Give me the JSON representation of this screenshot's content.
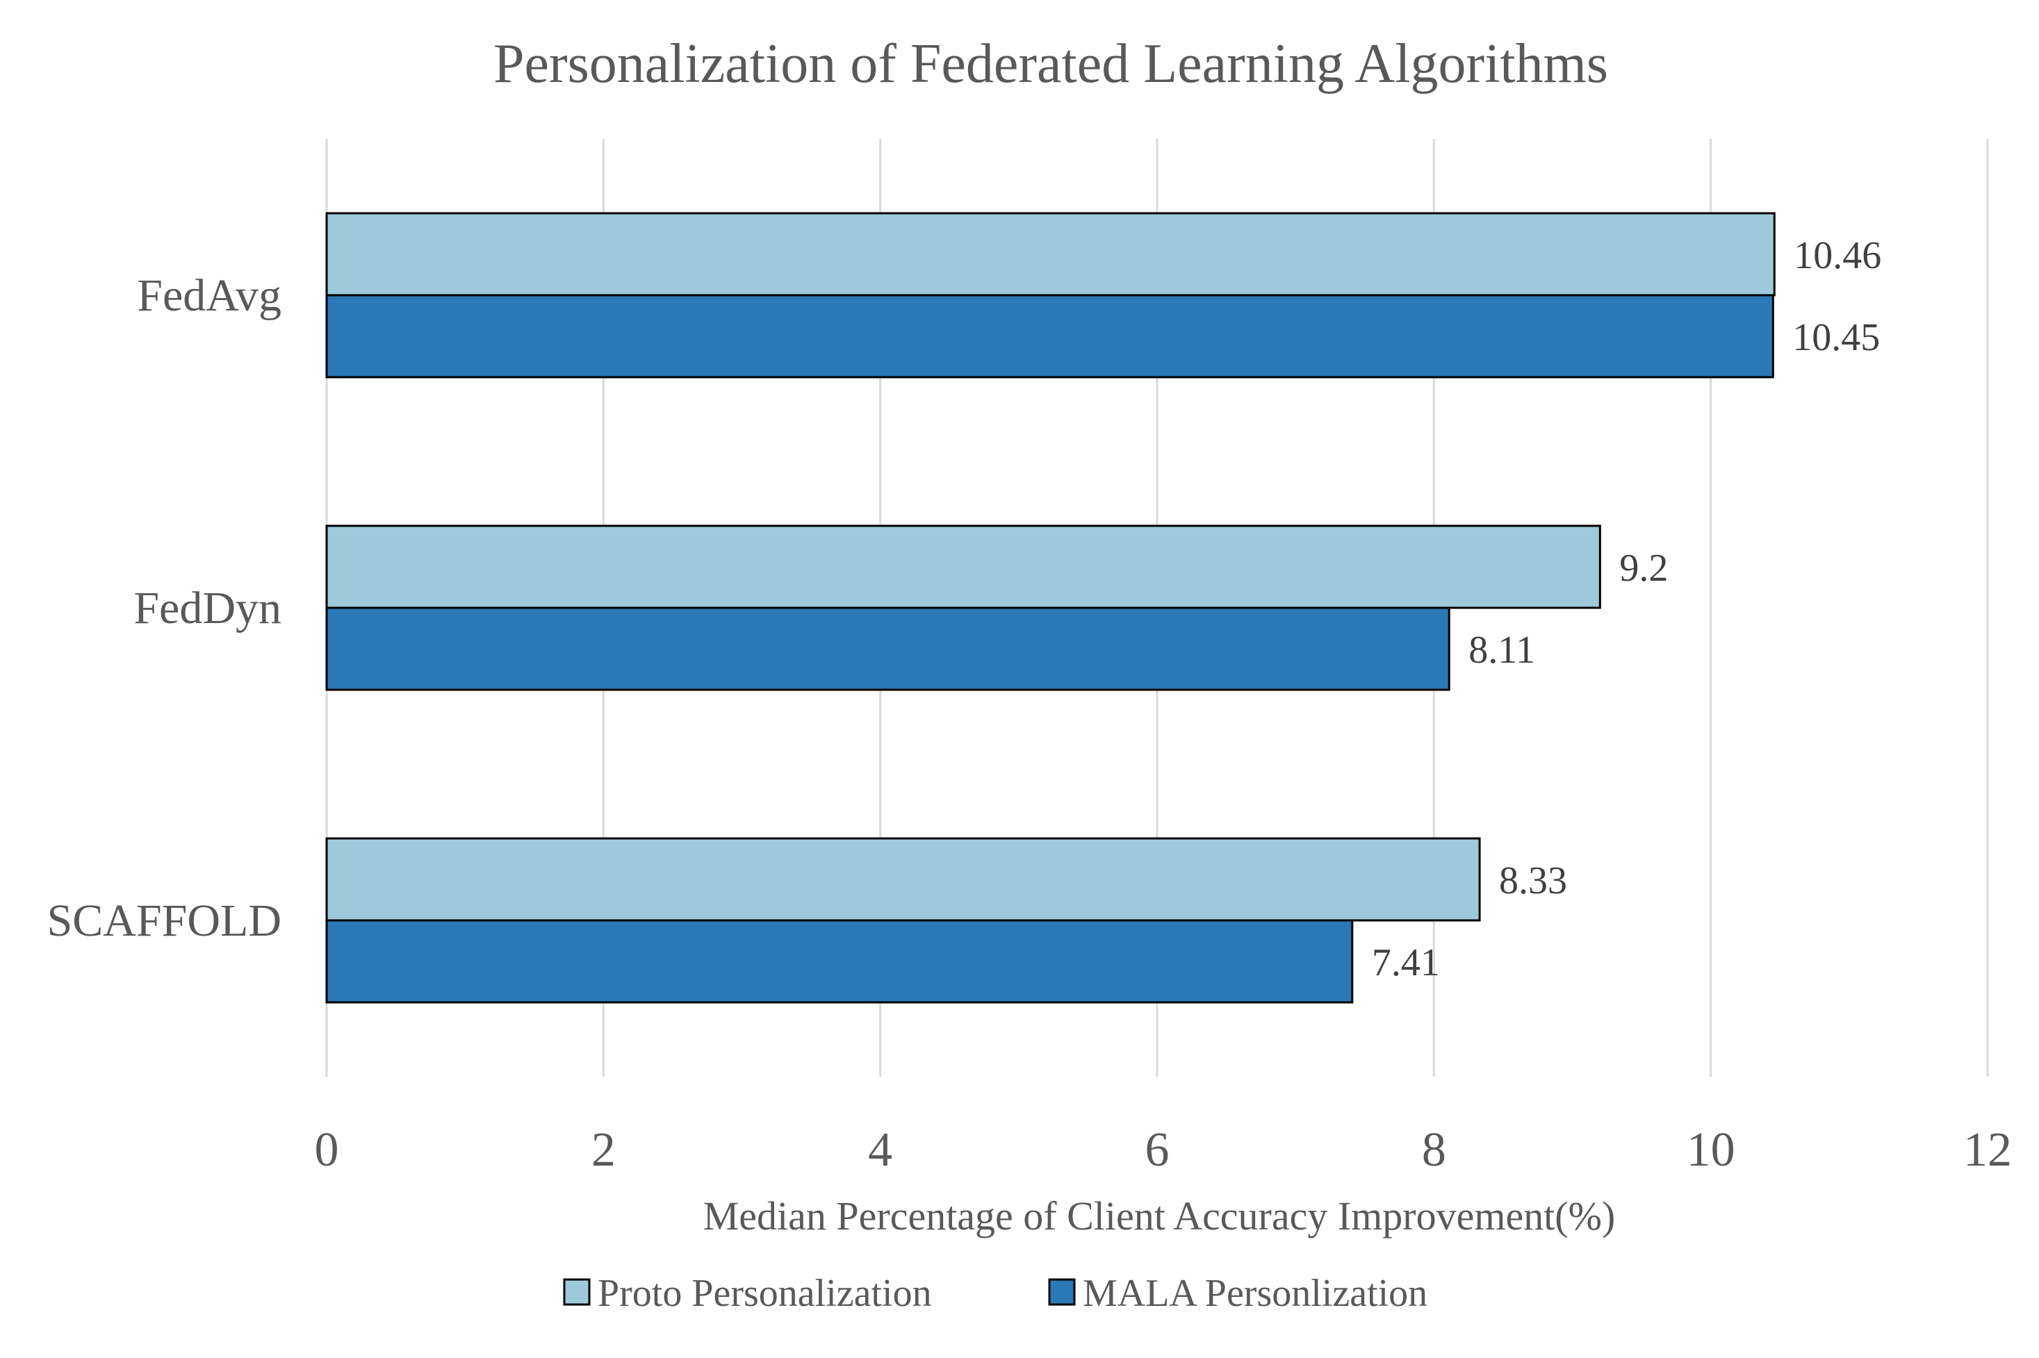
{
  "chart_data": {
    "type": "bar",
    "orientation": "horizontal",
    "title": "Personalization of Federated Learning Algorithms",
    "xlabel": "Median Percentage of Client Accuracy Improvement(%)",
    "ylabel": "",
    "categories": [
      "FedAvg",
      "FedDyn",
      "SCAFFOLD"
    ],
    "series": [
      {
        "name": "Proto Personalization",
        "values": [
          10.46,
          9.2,
          8.33
        ],
        "labels": [
          "10.46",
          "9.2",
          "8.33"
        ],
        "color": "#9DC9DB"
      },
      {
        "name": "MALA Personlization",
        "values": [
          10.45,
          8.11,
          7.41
        ],
        "labels": [
          "10.45",
          "8.11",
          "7.41"
        ],
        "color": "#2A78B5"
      }
    ],
    "xlim": [
      0,
      12
    ],
    "xticks": [
      0,
      2,
      4,
      6,
      8,
      10,
      12
    ],
    "xtick_labels": [
      "0",
      "2",
      "4",
      "6",
      "8",
      "10",
      "12"
    ],
    "grid": true,
    "legend_position": "bottom"
  }
}
